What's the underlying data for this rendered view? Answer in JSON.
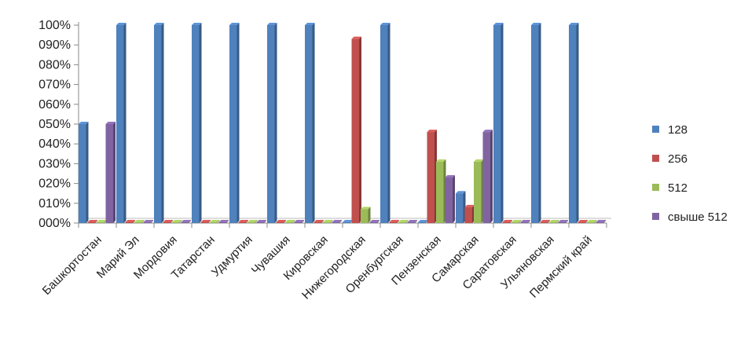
{
  "chart_data": {
    "type": "bar",
    "grid": false,
    "legend_position": "right",
    "ylim": [
      0,
      100
    ],
    "yticks": [
      {
        "value": 0,
        "label": "000%"
      },
      {
        "value": 10,
        "label": "010%"
      },
      {
        "value": 20,
        "label": "020%"
      },
      {
        "value": 30,
        "label": "030%"
      },
      {
        "value": 40,
        "label": "040%"
      },
      {
        "value": 50,
        "label": "050%"
      },
      {
        "value": 60,
        "label": "060%"
      },
      {
        "value": 70,
        "label": "070%"
      },
      {
        "value": 80,
        "label": "080%"
      },
      {
        "value": 90,
        "label": "090%"
      },
      {
        "value": 100,
        "label": "100%"
      }
    ],
    "categories": [
      "Башкортостан",
      "Марий Эл",
      "Мордовия",
      "Татарстан",
      "Удмуртия",
      "Чувашия",
      "Кировская",
      "Нижегородская",
      "Оренбургская",
      "Пензенская",
      "Самарская",
      "Саратовская",
      "Ульяновская",
      "Пермский край"
    ],
    "series": [
      {
        "name": "128",
        "color": "#4f81bd",
        "values": [
          50,
          100,
          100,
          100,
          100,
          100,
          100,
          0,
          100,
          0,
          15,
          100,
          100,
          100
        ]
      },
      {
        "name": "256",
        "color": "#c0504d",
        "values": [
          0,
          0,
          0,
          0,
          0,
          0,
          0,
          93,
          0,
          46,
          8,
          0,
          0,
          0
        ]
      },
      {
        "name": "512",
        "color": "#9bbb59",
        "values": [
          0,
          0,
          0,
          0,
          0,
          0,
          0,
          7,
          0,
          31,
          31,
          0,
          0,
          0
        ]
      },
      {
        "name": "свыше 512",
        "color": "#8064a2",
        "values": [
          50,
          0,
          0,
          0,
          0,
          0,
          0,
          0,
          0,
          23,
          46,
          0,
          0,
          0
        ]
      }
    ]
  }
}
